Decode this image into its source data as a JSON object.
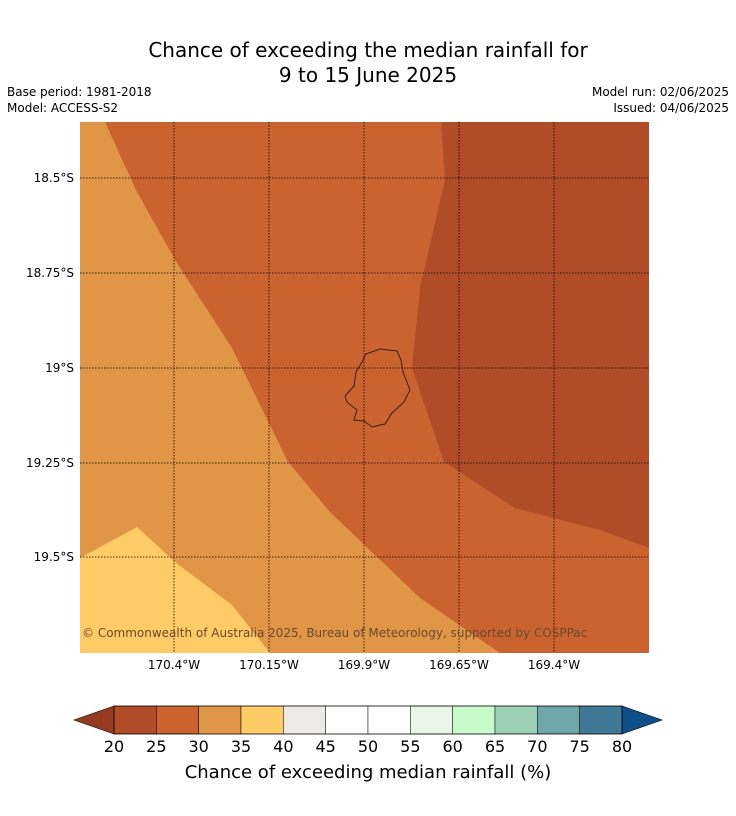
{
  "title_line1": "Chance of exceeding the median rainfall for",
  "title_line2": "9 to 15 June 2025",
  "base_period": "Base period: 1981-2018",
  "model": "Model: ACCESS-S2",
  "model_run": "Model run: 02/06/2025",
  "issued": "Issued: 04/06/2025",
  "copyright": "© Commonwealth of Australia 2025, Bureau of Meteorology, supported by COSPPac",
  "lat_labels": [
    "18.5°S",
    "18.75°S",
    "19°S",
    "19.25°S",
    "19.5°S"
  ],
  "lon_labels": [
    "170.4°W",
    "170.15°W",
    "169.9°W",
    "169.65°W",
    "169.4°W"
  ],
  "colorbar": {
    "ticks": [
      "20",
      "25",
      "30",
      "35",
      "40",
      "45",
      "50",
      "55",
      "60",
      "65",
      "70",
      "75",
      "80"
    ],
    "label": "Chance of exceeding median rainfall (%)",
    "under_color": "#963c22",
    "over_color": "#0f4f8a",
    "colors": [
      "#b04c27",
      "#cb6331",
      "#e19547",
      "#fecb66",
      "#ede9e4",
      "#ffffff",
      "#ffffff",
      "#e9f6e7",
      "#c8fbca",
      "#9dcfb6",
      "#6ea7a8",
      "#417896"
    ]
  },
  "map_colors": {
    "band_20_25": "#b04c27",
    "band_25_30": "#cb6331",
    "band_30_35": "#e19547",
    "band_35_40": "#fecb66",
    "coastline": "#3a1d10"
  }
}
